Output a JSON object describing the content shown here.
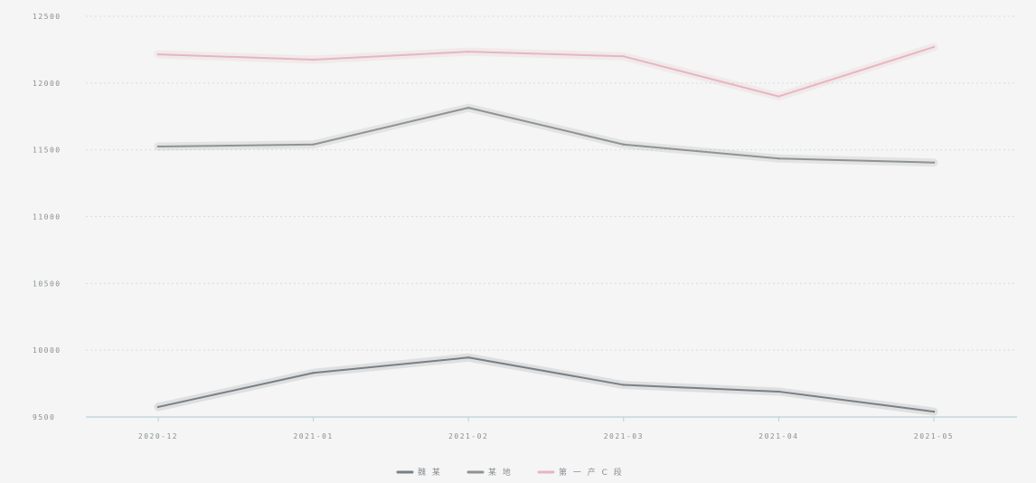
{
  "chart_data": {
    "type": "line",
    "categories": [
      "2020-12",
      "2021-01",
      "2021-02",
      "2021-03",
      "2021-04",
      "2021-05"
    ],
    "ylim": [
      9500,
      12500
    ],
    "yticks": [
      9500,
      10000,
      10500,
      11000,
      11500,
      12000,
      12500
    ],
    "grid": true,
    "legend_position": "bottom-center",
    "series": [
      {
        "name": "魏 某",
        "color": "#7a7f84",
        "values": [
          9575,
          9830,
          9945,
          9740,
          9690,
          9540
        ]
      },
      {
        "name": "某 地",
        "color": "#8e9491",
        "values": [
          11525,
          11540,
          11815,
          11540,
          11435,
          11405
        ]
      },
      {
        "name": "第 一 产 C 段",
        "color": "#e6b6c0",
        "values": [
          12215,
          12175,
          12235,
          12200,
          11900,
          12270
        ]
      }
    ]
  }
}
